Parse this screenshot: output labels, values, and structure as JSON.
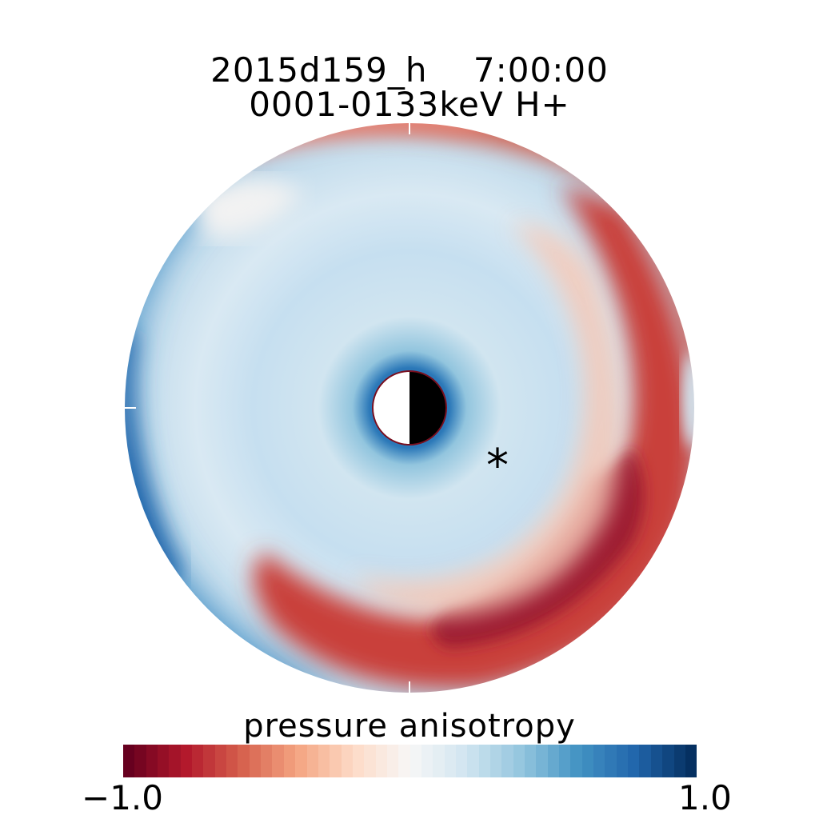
{
  "chart_data": {
    "type": "heatmap",
    "title": "2015d159_h    7:00:00",
    "subtitle": "0001-0133keV H+",
    "colorbar": {
      "label": "pressure anisotropy",
      "min": -1.0,
      "max": 1.0,
      "min_label": "−1.0",
      "max_label": "1.0",
      "colors": [
        "#67001f",
        "#b2182b",
        "#d6604d",
        "#f4a582",
        "#fddbc7",
        "#f7f7f7",
        "#d1e5f0",
        "#92c5de",
        "#4393c3",
        "#2166ac",
        "#053061"
      ]
    },
    "satellite_marker": "*",
    "grid": false
  }
}
